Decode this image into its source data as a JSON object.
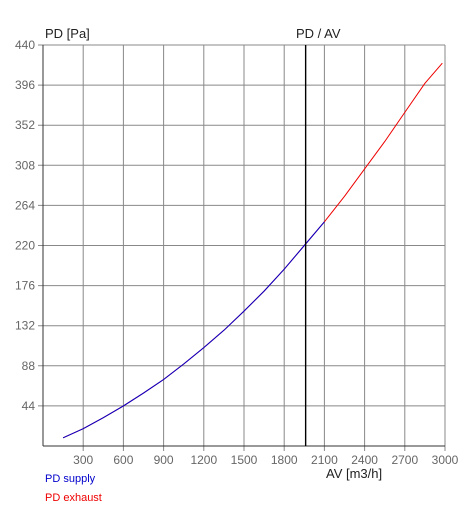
{
  "chart_data": {
    "type": "line",
    "title": "PD / AV",
    "xlabel": "AV [m3/h]",
    "ylabel": "PD [Pa]",
    "xlim": [
      0,
      3000
    ],
    "ylim": [
      0,
      440
    ],
    "x_ticks": [
      300,
      600,
      900,
      1200,
      1500,
      1800,
      2100,
      2400,
      2700,
      3000
    ],
    "y_ticks": [
      44,
      88,
      132,
      176,
      220,
      264,
      308,
      352,
      396,
      440
    ],
    "grid": true,
    "operating_point": {
      "x": 1960
    },
    "series": [
      {
        "name": "PD supply",
        "color": "#0000cc",
        "x": [
          150,
          300,
          450,
          600,
          750,
          900,
          1050,
          1200,
          1350,
          1500,
          1650,
          1800,
          1950,
          2100
        ],
        "y": [
          9,
          19,
          31,
          44,
          58,
          73,
          90,
          108,
          127,
          148,
          170,
          194,
          220,
          246
        ]
      },
      {
        "name": "PD exhaust",
        "color": "#ee0000",
        "x": [
          150,
          300,
          450,
          600,
          750,
          900,
          1050,
          1200,
          1350,
          1500,
          1650,
          1800,
          1950,
          2100,
          2250,
          2400,
          2550,
          2700,
          2850,
          2980
        ],
        "y": [
          9,
          19,
          31,
          44,
          58,
          73,
          90,
          108,
          127,
          148,
          170,
          194,
          220,
          246,
          274,
          304,
          334,
          366,
          398,
          420
        ]
      }
    ],
    "legend": {
      "placement": "bottom-left"
    }
  },
  "colors": {
    "grid": "#888888",
    "axis": "#333333",
    "tick_text": "#666666",
    "marker": "#000000"
  }
}
